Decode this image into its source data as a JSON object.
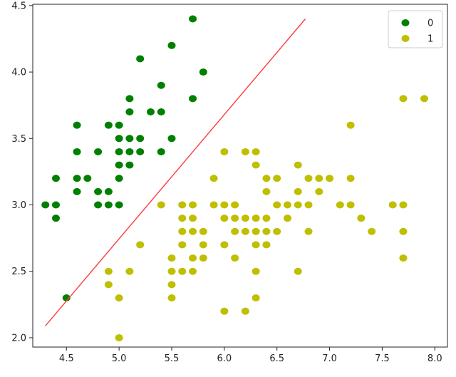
{
  "chart_data": {
    "type": "scatter",
    "title": "",
    "xlabel": "",
    "ylabel": "",
    "xlim": [
      4.18,
      8.12
    ],
    "ylim": [
      1.93,
      4.51
    ],
    "xticks": [
      "4.5",
      "5.0",
      "5.5",
      "6.0",
      "6.5",
      "7.0",
      "7.5",
      "8.0"
    ],
    "yticks": [
      "2.0",
      "2.5",
      "3.0",
      "3.5",
      "4.0",
      "4.5"
    ],
    "grid": false,
    "legend_position": "top-right",
    "series": [
      {
        "name": "0",
        "color": "#008000",
        "points": [
          [
            4.3,
            3.0
          ],
          [
            4.4,
            3.0
          ],
          [
            4.4,
            2.9
          ],
          [
            4.4,
            3.2
          ],
          [
            4.5,
            2.3
          ],
          [
            4.6,
            3.1
          ],
          [
            4.6,
            3.2
          ],
          [
            4.6,
            3.4
          ],
          [
            4.6,
            3.6
          ],
          [
            4.7,
            3.2
          ],
          [
            4.8,
            3.0
          ],
          [
            4.8,
            3.1
          ],
          [
            4.8,
            3.4
          ],
          [
            4.9,
            3.0
          ],
          [
            4.9,
            3.1
          ],
          [
            4.9,
            3.6
          ],
          [
            5.0,
            3.0
          ],
          [
            5.0,
            3.2
          ],
          [
            5.0,
            3.3
          ],
          [
            5.0,
            3.4
          ],
          [
            5.0,
            3.5
          ],
          [
            5.0,
            3.6
          ],
          [
            5.1,
            3.3
          ],
          [
            5.1,
            3.4
          ],
          [
            5.1,
            3.5
          ],
          [
            5.1,
            3.7
          ],
          [
            5.1,
            3.8
          ],
          [
            5.2,
            3.4
          ],
          [
            5.2,
            3.5
          ],
          [
            5.2,
            4.1
          ],
          [
            5.3,
            3.7
          ],
          [
            5.4,
            3.4
          ],
          [
            5.4,
            3.7
          ],
          [
            5.4,
            3.9
          ],
          [
            5.5,
            3.5
          ],
          [
            5.5,
            4.2
          ],
          [
            5.7,
            3.8
          ],
          [
            5.7,
            4.4
          ],
          [
            5.8,
            4.0
          ]
        ]
      },
      {
        "name": "1",
        "color": "#bfbf00",
        "points": [
          [
            4.9,
            2.4
          ],
          [
            4.9,
            2.5
          ],
          [
            5.0,
            2.0
          ],
          [
            5.0,
            2.3
          ],
          [
            5.1,
            2.5
          ],
          [
            5.2,
            2.7
          ],
          [
            5.4,
            3.0
          ],
          [
            5.5,
            2.3
          ],
          [
            5.5,
            2.4
          ],
          [
            5.5,
            2.5
          ],
          [
            5.5,
            2.6
          ],
          [
            5.6,
            2.5
          ],
          [
            5.6,
            2.7
          ],
          [
            5.6,
            2.8
          ],
          [
            5.6,
            2.9
          ],
          [
            5.6,
            3.0
          ],
          [
            5.7,
            2.5
          ],
          [
            5.7,
            2.6
          ],
          [
            5.7,
            2.8
          ],
          [
            5.7,
            2.9
          ],
          [
            5.7,
            3.0
          ],
          [
            5.8,
            2.6
          ],
          [
            5.8,
            2.7
          ],
          [
            5.8,
            2.8
          ],
          [
            5.9,
            3.0
          ],
          [
            5.9,
            3.2
          ],
          [
            6.0,
            2.2
          ],
          [
            6.0,
            2.7
          ],
          [
            6.0,
            2.9
          ],
          [
            6.0,
            3.0
          ],
          [
            6.0,
            3.4
          ],
          [
            6.1,
            2.6
          ],
          [
            6.1,
            2.8
          ],
          [
            6.1,
            2.9
          ],
          [
            6.1,
            3.0
          ],
          [
            6.2,
            2.2
          ],
          [
            6.2,
            2.8
          ],
          [
            6.2,
            2.9
          ],
          [
            6.2,
            3.4
          ],
          [
            6.3,
            2.3
          ],
          [
            6.3,
            2.5
          ],
          [
            6.3,
            2.7
          ],
          [
            6.3,
            2.8
          ],
          [
            6.3,
            2.9
          ],
          [
            6.3,
            3.3
          ],
          [
            6.3,
            3.4
          ],
          [
            6.4,
            2.7
          ],
          [
            6.4,
            2.8
          ],
          [
            6.4,
            2.9
          ],
          [
            6.4,
            3.1
          ],
          [
            6.4,
            3.2
          ],
          [
            6.5,
            2.8
          ],
          [
            6.5,
            3.0
          ],
          [
            6.5,
            3.2
          ],
          [
            6.6,
            2.9
          ],
          [
            6.6,
            3.0
          ],
          [
            6.7,
            2.5
          ],
          [
            6.7,
            3.0
          ],
          [
            6.7,
            3.1
          ],
          [
            6.7,
            3.3
          ],
          [
            6.8,
            2.8
          ],
          [
            6.8,
            3.0
          ],
          [
            6.8,
            3.2
          ],
          [
            6.9,
            3.1
          ],
          [
            6.9,
            3.2
          ],
          [
            7.0,
            3.2
          ],
          [
            7.1,
            3.0
          ],
          [
            7.2,
            3.0
          ],
          [
            7.2,
            3.2
          ],
          [
            7.2,
            3.6
          ],
          [
            7.3,
            2.9
          ],
          [
            7.4,
            2.8
          ],
          [
            7.6,
            3.0
          ],
          [
            7.7,
            2.6
          ],
          [
            7.7,
            2.8
          ],
          [
            7.7,
            3.0
          ],
          [
            7.7,
            3.8
          ],
          [
            7.9,
            3.8
          ]
        ]
      }
    ],
    "line": {
      "color": "#ff3b3b",
      "points": [
        [
          4.3,
          2.09
        ],
        [
          6.77,
          4.4
        ]
      ]
    }
  }
}
